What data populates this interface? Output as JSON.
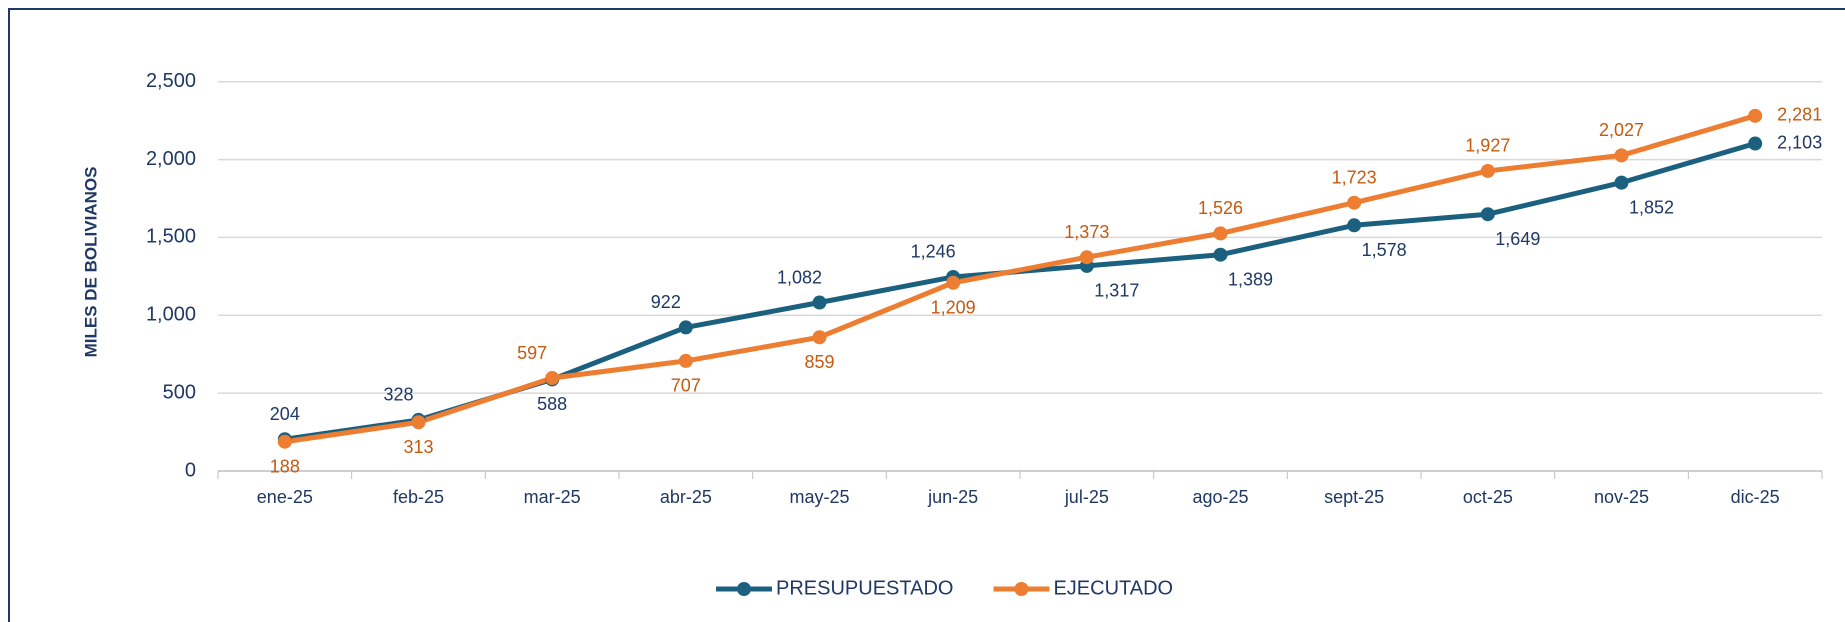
{
  "chart_data": {
    "type": "line",
    "y_label": "MILES DE BOLIVIANOS",
    "categories": [
      "ene-25",
      "feb-25",
      "mar-25",
      "abr-25",
      "may-25",
      "jun-25",
      "jul-25",
      "ago-25",
      "sept-25",
      "oct-25",
      "nov-25",
      "dic-25"
    ],
    "series": [
      {
        "name": "PRESUPUESTADO",
        "color": "#1c6080",
        "label_color": "#1f3864",
        "values": [
          204,
          328,
          588,
          922,
          1082,
          1246,
          1317,
          1389,
          1578,
          1649,
          1852,
          2103
        ],
        "value_labels": [
          "204",
          "328",
          "588",
          "922",
          "1,082",
          "1,246",
          "1,317",
          "1,389",
          "1,578",
          "1,649",
          "1,852",
          "2,103"
        ]
      },
      {
        "name": "EJECUTADO",
        "color": "#ed7d31",
        "label_color": "#c55a11",
        "values": [
          188,
          313,
          597,
          707,
          859,
          1209,
          1373,
          1526,
          1723,
          1927,
          2027,
          2281
        ],
        "value_labels": [
          "188",
          "313",
          "597",
          "707",
          "859",
          "1,209",
          "1,373",
          "1,526",
          "1,723",
          "1,927",
          "2,027",
          "2,281"
        ]
      }
    ],
    "ylim": [
      0,
      2800
    ],
    "yticks": [
      0,
      500,
      {
        "value": 1000,
        "label": "1,000"
      },
      {
        "value": 1500,
        "label": "1,500"
      },
      {
        "value": 2000,
        "label": "2,000"
      },
      {
        "value": 2500,
        "label": "2,500"
      }
    ],
    "grid": true,
    "legend": "bottom"
  }
}
